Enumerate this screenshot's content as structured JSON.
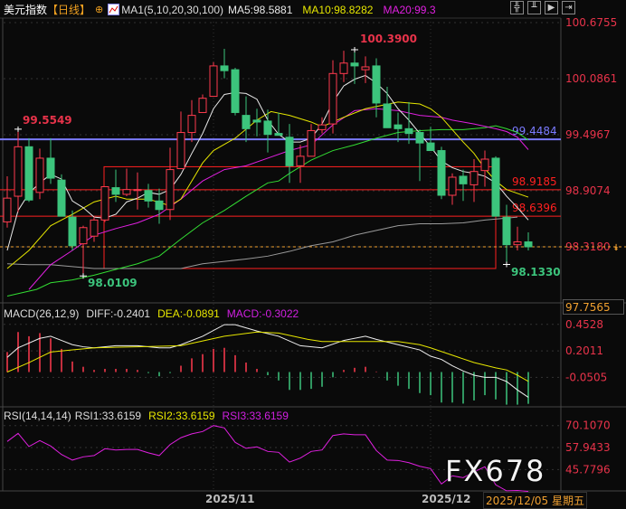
{
  "header": {
    "title": "美元指数",
    "period": "【日线】",
    "period_icon": "crosshair-circle-icon",
    "ma_set": "MA1(5,10,20,30,100)",
    "ma5": "MA5:98.5881",
    "ma10": "MA10:98.8282",
    "ma20": "MA20:99.3"
  },
  "toolbar": {
    "icons": [
      "crosshair-icon",
      "interval-stats-icon",
      "play-replay-icon",
      "expand-right-icon"
    ]
  },
  "colors": {
    "up": "#ff3b4e",
    "down": "#3cc47c",
    "ma5": "#e8e8e8",
    "ma10": "#e6e600",
    "ma20": "#e020e0",
    "ma30": "#33dd33",
    "ma100": "#9a9a9a",
    "support_line": "#7b7bff",
    "level_line": "#ff2020",
    "axis_text": "#e8334a",
    "dea": "#e6e600",
    "diff": "#eeeeee",
    "rsi": "#e020e0",
    "current_price": "#f0a030"
  },
  "macd_header": {
    "name": "MACD(26,12,9)",
    "diff": "DIFF:-0.2401",
    "dea": "DEA:-0.0891",
    "macd": "MACD:-0.3022"
  },
  "rsi_header": {
    "name": "RSI(14,14,14)",
    "rsi1": "RSI1:33.6159",
    "rsi2": "RSI2:33.6159",
    "rsi3": "RSI3:33.6159"
  },
  "price_axis": [
    "100.6755",
    "100.0861",
    "99.4967",
    "98.9074",
    "98.3180"
  ],
  "macd_axis": [
    "0.4528",
    "0.2011",
    "-0.0505"
  ],
  "rsi_axis": [
    "70.1070",
    "57.9433",
    "45.7796"
  ],
  "crosshair_price": "97.7565",
  "crosshair_date": "2025/12/05 星期五",
  "x_axis": [
    {
      "label": "2025/11",
      "index": 19
    },
    {
      "label": "2025/12",
      "index": 39
    }
  ],
  "watermark": "FX678",
  "annotations": {
    "high_left": "99.5549",
    "low_left": "98.0109",
    "high_peak": "100.3900",
    "low_right": "98.1330"
  },
  "chart_data": [
    {
      "type": "candlestick",
      "title": "美元指数",
      "price_axis_range": [
        97.7565,
        100.6755
      ],
      "current_price": 98.318,
      "candles_ohlc": [
        [
          98.58,
          99.06,
          98.52,
          98.83
        ],
        [
          98.85,
          99.5549,
          98.68,
          99.37
        ],
        [
          99.37,
          99.46,
          98.79,
          98.81
        ],
        [
          98.89,
          99.35,
          98.82,
          99.25
        ],
        [
          99.25,
          99.46,
          98.98,
          99.04
        ],
        [
          99.02,
          99.08,
          98.64,
          98.64
        ],
        [
          98.63,
          98.7,
          98.28,
          98.33
        ],
        [
          98.35,
          98.54,
          98.0109,
          98.52
        ],
        [
          98.43,
          98.63,
          98.37,
          98.6
        ],
        [
          98.6,
          98.95,
          98.58,
          98.95
        ],
        [
          98.94,
          99.13,
          98.79,
          98.87
        ],
        [
          98.87,
          99.14,
          98.85,
          98.92
        ],
        [
          98.91,
          99.1,
          98.71,
          98.92
        ],
        [
          98.91,
          98.98,
          98.73,
          98.8
        ],
        [
          98.8,
          98.93,
          98.56,
          98.71
        ],
        [
          98.71,
          99.36,
          98.6,
          99.13
        ],
        [
          99.14,
          99.74,
          99.14,
          99.52
        ],
        [
          99.52,
          99.86,
          99.42,
          99.7
        ],
        [
          99.73,
          99.92,
          99.73,
          99.88
        ],
        [
          99.9,
          100.26,
          99.9,
          100.22
        ],
        [
          100.22,
          100.4,
          100.09,
          100.17
        ],
        [
          100.18,
          100.2,
          99.7,
          99.73
        ],
        [
          99.7,
          99.9,
          99.42,
          99.56
        ],
        [
          99.65,
          99.77,
          99.48,
          99.63
        ],
        [
          99.64,
          99.76,
          99.31,
          99.5
        ],
        [
          99.51,
          99.73,
          99.49,
          99.49
        ],
        [
          99.47,
          99.61,
          98.99,
          99.17
        ],
        [
          99.17,
          99.39,
          98.99,
          99.27
        ],
        [
          99.27,
          99.61,
          99.27,
          99.54
        ],
        [
          99.55,
          99.68,
          99.51,
          99.6
        ],
        [
          99.61,
          100.28,
          99.51,
          100.14
        ],
        [
          100.14,
          100.38,
          100.05,
          100.25
        ],
        [
          100.25,
          100.39,
          100.03,
          100.22
        ],
        [
          100.18,
          100.32,
          100.04,
          100.21
        ],
        [
          100.22,
          100.3,
          99.68,
          99.83
        ],
        [
          99.82,
          100.0,
          99.57,
          99.57
        ],
        [
          99.6,
          99.73,
          99.42,
          99.56
        ],
        [
          99.56,
          99.84,
          99.4,
          99.51
        ],
        [
          99.52,
          99.55,
          99.01,
          99.41
        ],
        [
          99.41,
          99.58,
          99.33,
          99.33
        ],
        [
          99.33,
          99.37,
          98.82,
          98.86
        ],
        [
          98.86,
          99.09,
          98.76,
          99.05
        ],
        [
          99.06,
          99.13,
          98.8,
          98.98
        ],
        [
          98.97,
          99.24,
          98.79,
          99.11
        ],
        [
          99.12,
          99.33,
          98.95,
          99.24
        ],
        [
          99.25,
          99.27,
          98.64,
          98.64
        ],
        [
          98.63,
          98.76,
          98.133,
          98.34
        ],
        [
          98.34,
          98.53,
          98.28,
          98.37
        ],
        [
          98.37,
          98.47,
          98.28,
          98.318
        ]
      ],
      "ma5": [
        98.28,
        98.7,
        98.88,
        98.99,
        99.08,
        99.03,
        98.8,
        98.73,
        98.63,
        98.62,
        98.66,
        98.79,
        98.83,
        98.89,
        98.87,
        98.92,
        99.08,
        99.3,
        99.51,
        99.77,
        99.92,
        99.94,
        99.93,
        99.87,
        99.65,
        99.5,
        99.42,
        99.42,
        99.46,
        99.61,
        99.84,
        100.01,
        100.08,
        100.12,
        100.04,
        99.93,
        99.77,
        99.65,
        99.51,
        99.37,
        99.22,
        99.15,
        99.11,
        99.09,
        99.06,
        98.99,
        98.85,
        98.73,
        98.6
      ],
      "ma10_points": [
        [
          0,
          98.09
        ],
        [
          2,
          98.28
        ],
        [
          4,
          98.54
        ],
        [
          6,
          98.66
        ],
        [
          8,
          98.79
        ],
        [
          10,
          98.85
        ],
        [
          11,
          98.82
        ],
        [
          13,
          98.82
        ],
        [
          15,
          98.75
        ],
        [
          16,
          98.82
        ],
        [
          17,
          99.01
        ],
        [
          18,
          99.2
        ],
        [
          19,
          99.33
        ],
        [
          21,
          99.46
        ],
        [
          23,
          99.65
        ],
        [
          24.3,
          99.74
        ],
        [
          26,
          99.7
        ],
        [
          28,
          99.63
        ],
        [
          29,
          99.58
        ],
        [
          30,
          99.63
        ],
        [
          31,
          99.68
        ],
        [
          33,
          99.77
        ],
        [
          36,
          99.84
        ],
        [
          38,
          99.82
        ],
        [
          39,
          99.77
        ],
        [
          40,
          99.68
        ],
        [
          41,
          99.55
        ],
        [
          42,
          99.42
        ],
        [
          43,
          99.3
        ],
        [
          44,
          99.14
        ],
        [
          45,
          99.01
        ],
        [
          46,
          98.92
        ],
        [
          48,
          98.84
        ]
      ],
      "ma20_points": [
        [
          2,
          97.87
        ],
        [
          4,
          98.13
        ],
        [
          6,
          98.28
        ],
        [
          8,
          98.44
        ],
        [
          10,
          98.51
        ],
        [
          12,
          98.57
        ],
        [
          14,
          98.66
        ],
        [
          16,
          98.82
        ],
        [
          18,
          99.01
        ],
        [
          20,
          99.13
        ],
        [
          22,
          99.17
        ],
        [
          24,
          99.25
        ],
        [
          26,
          99.33
        ],
        [
          28,
          99.39
        ],
        [
          30,
          99.6
        ],
        [
          32,
          99.75
        ],
        [
          34,
          99.77
        ],
        [
          36,
          99.75
        ],
        [
          38,
          99.7
        ],
        [
          40,
          99.68
        ],
        [
          41,
          99.65
        ],
        [
          43,
          99.61
        ],
        [
          45,
          99.56
        ],
        [
          46,
          99.53
        ],
        [
          47,
          99.47
        ],
        [
          48,
          99.34
        ]
      ],
      "ma30_points": [
        [
          0,
          97.8
        ],
        [
          2.7,
          97.87
        ],
        [
          4,
          97.94
        ],
        [
          6,
          97.97
        ],
        [
          8,
          98.02
        ],
        [
          10,
          98.08
        ],
        [
          12,
          98.14
        ],
        [
          14,
          98.22
        ],
        [
          16,
          98.4
        ],
        [
          18,
          98.57
        ],
        [
          20,
          98.7
        ],
        [
          22,
          98.85
        ],
        [
          24,
          98.99
        ],
        [
          25,
          99.01
        ],
        [
          26,
          99.09
        ],
        [
          28,
          99.23
        ],
        [
          30,
          99.33
        ],
        [
          32,
          99.39
        ],
        [
          34,
          99.46
        ],
        [
          36,
          99.52
        ],
        [
          38,
          99.54
        ],
        [
          40,
          99.55
        ],
        [
          42,
          99.55
        ],
        [
          44,
          99.57
        ],
        [
          45,
          99.59
        ],
        [
          46,
          99.56
        ],
        [
          47,
          99.52
        ],
        [
          48,
          99.44
        ]
      ],
      "ma100_points": [
        [
          0,
          98.14
        ],
        [
          2,
          98.13
        ],
        [
          4,
          98.13
        ],
        [
          6,
          98.11
        ],
        [
          8,
          98.09
        ],
        [
          16,
          98.09
        ],
        [
          18,
          98.14
        ],
        [
          22,
          98.19
        ],
        [
          24,
          98.22
        ],
        [
          26,
          98.27
        ],
        [
          28,
          98.33
        ],
        [
          30,
          98.37
        ],
        [
          32,
          98.44
        ],
        [
          34,
          98.49
        ],
        [
          36,
          98.54
        ],
        [
          38,
          98.56
        ],
        [
          40,
          98.56
        ],
        [
          42,
          98.57
        ],
        [
          44,
          98.6
        ],
        [
          46,
          98.62
        ],
        [
          47,
          98.63
        ]
      ],
      "horizontal_lines": [
        {
          "label": "99.4484",
          "value": 99.4484,
          "color": "#7b7bff"
        },
        {
          "label": "98.9185",
          "value": 98.9185,
          "color": "#ff2020"
        },
        {
          "label": "98.6396",
          "value": 98.6396,
          "color": "#ff2020"
        }
      ],
      "rectangle": {
        "from_index": 9,
        "to_index": 45,
        "top": 99.16,
        "bottom": 98.09
      }
    },
    {
      "type": "bar+line",
      "title": "MACD(26,12,9)",
      "macd_bars": [
        0.19,
        0.38,
        0.34,
        0.37,
        0.32,
        0.22,
        0.1,
        0.05,
        0.02,
        0.03,
        0.03,
        0.03,
        0.02,
        -0.01,
        -0.04,
        -0.01,
        0.06,
        0.13,
        0.17,
        0.22,
        0.23,
        0.16,
        0.09,
        0.03,
        -0.03,
        -0.08,
        -0.17,
        -0.17,
        -0.16,
        -0.14,
        -0.05,
        0.02,
        0.04,
        0.05,
        0.005,
        -0.08,
        -0.13,
        -0.16,
        -0.2,
        -0.22,
        -0.29,
        -0.29,
        -0.3,
        -0.27,
        -0.22,
        -0.26,
        -0.31,
        -0.31,
        -0.3022
      ],
      "diff_points": [
        [
          0,
          0.14
        ],
        [
          1,
          0.23
        ],
        [
          3,
          0.32
        ],
        [
          4,
          0.34
        ],
        [
          5,
          0.3
        ],
        [
          6,
          0.26
        ],
        [
          7,
          0.24
        ],
        [
          8,
          0.23
        ],
        [
          10,
          0.25
        ],
        [
          12,
          0.25
        ],
        [
          14,
          0.23
        ],
        [
          15,
          0.23
        ],
        [
          16,
          0.26
        ],
        [
          18,
          0.34
        ],
        [
          20,
          0.45
        ],
        [
          21,
          0.45
        ],
        [
          23,
          0.39
        ],
        [
          25,
          0.34
        ],
        [
          27,
          0.25
        ],
        [
          29,
          0.23
        ],
        [
          31,
          0.3
        ],
        [
          33,
          0.34
        ],
        [
          34,
          0.31
        ],
        [
          36,
          0.26
        ],
        [
          38,
          0.21
        ],
        [
          39,
          0.15
        ],
        [
          40,
          0.12
        ],
        [
          41,
          0.06
        ],
        [
          42,
          0.01
        ],
        [
          43,
          -0.03
        ],
        [
          44,
          -0.05
        ],
        [
          45,
          -0.05
        ],
        [
          46,
          -0.09
        ],
        [
          47,
          -0.17
        ],
        [
          48,
          -0.2401
        ]
      ],
      "dea_points": [
        [
          0,
          0.0
        ],
        [
          2,
          0.09
        ],
        [
          4,
          0.19
        ],
        [
          6,
          0.21
        ],
        [
          8,
          0.23
        ],
        [
          12,
          0.24
        ],
        [
          16,
          0.25
        ],
        [
          20,
          0.34
        ],
        [
          23,
          0.38
        ],
        [
          25,
          0.37
        ],
        [
          27.7,
          0.31
        ],
        [
          29,
          0.29
        ],
        [
          33,
          0.29
        ],
        [
          36,
          0.29
        ],
        [
          38,
          0.26
        ],
        [
          39,
          0.23
        ],
        [
          41,
          0.16
        ],
        [
          43,
          0.09
        ],
        [
          45,
          0.04
        ],
        [
          46,
          0.02
        ],
        [
          47,
          -0.03
        ],
        [
          48,
          -0.0891
        ]
      ]
    },
    {
      "type": "line",
      "title": "RSI(14,14,14)",
      "rsi": [
        61.3,
        65.8,
        58.5,
        61.8,
        58.8,
        54.1,
        51.0,
        52.8,
        53.5,
        57.3,
        56.6,
        56.9,
        56.9,
        55.0,
        53.5,
        59.6,
        63.4,
        65.5,
        66.8,
        70.1,
        68.8,
        60.8,
        57.5,
        58.3,
        55.8,
        55.3,
        49.9,
        52.1,
        55.8,
        56.6,
        64.6,
        65.5,
        65.0,
        65.0,
        56.3,
        51.0,
        50.8,
        49.6,
        47.6,
        46.3,
        37.8,
        42.3,
        41.3,
        44.5,
        47.3,
        37.3,
        34.0,
        34.2,
        33.6159
      ]
    }
  ]
}
